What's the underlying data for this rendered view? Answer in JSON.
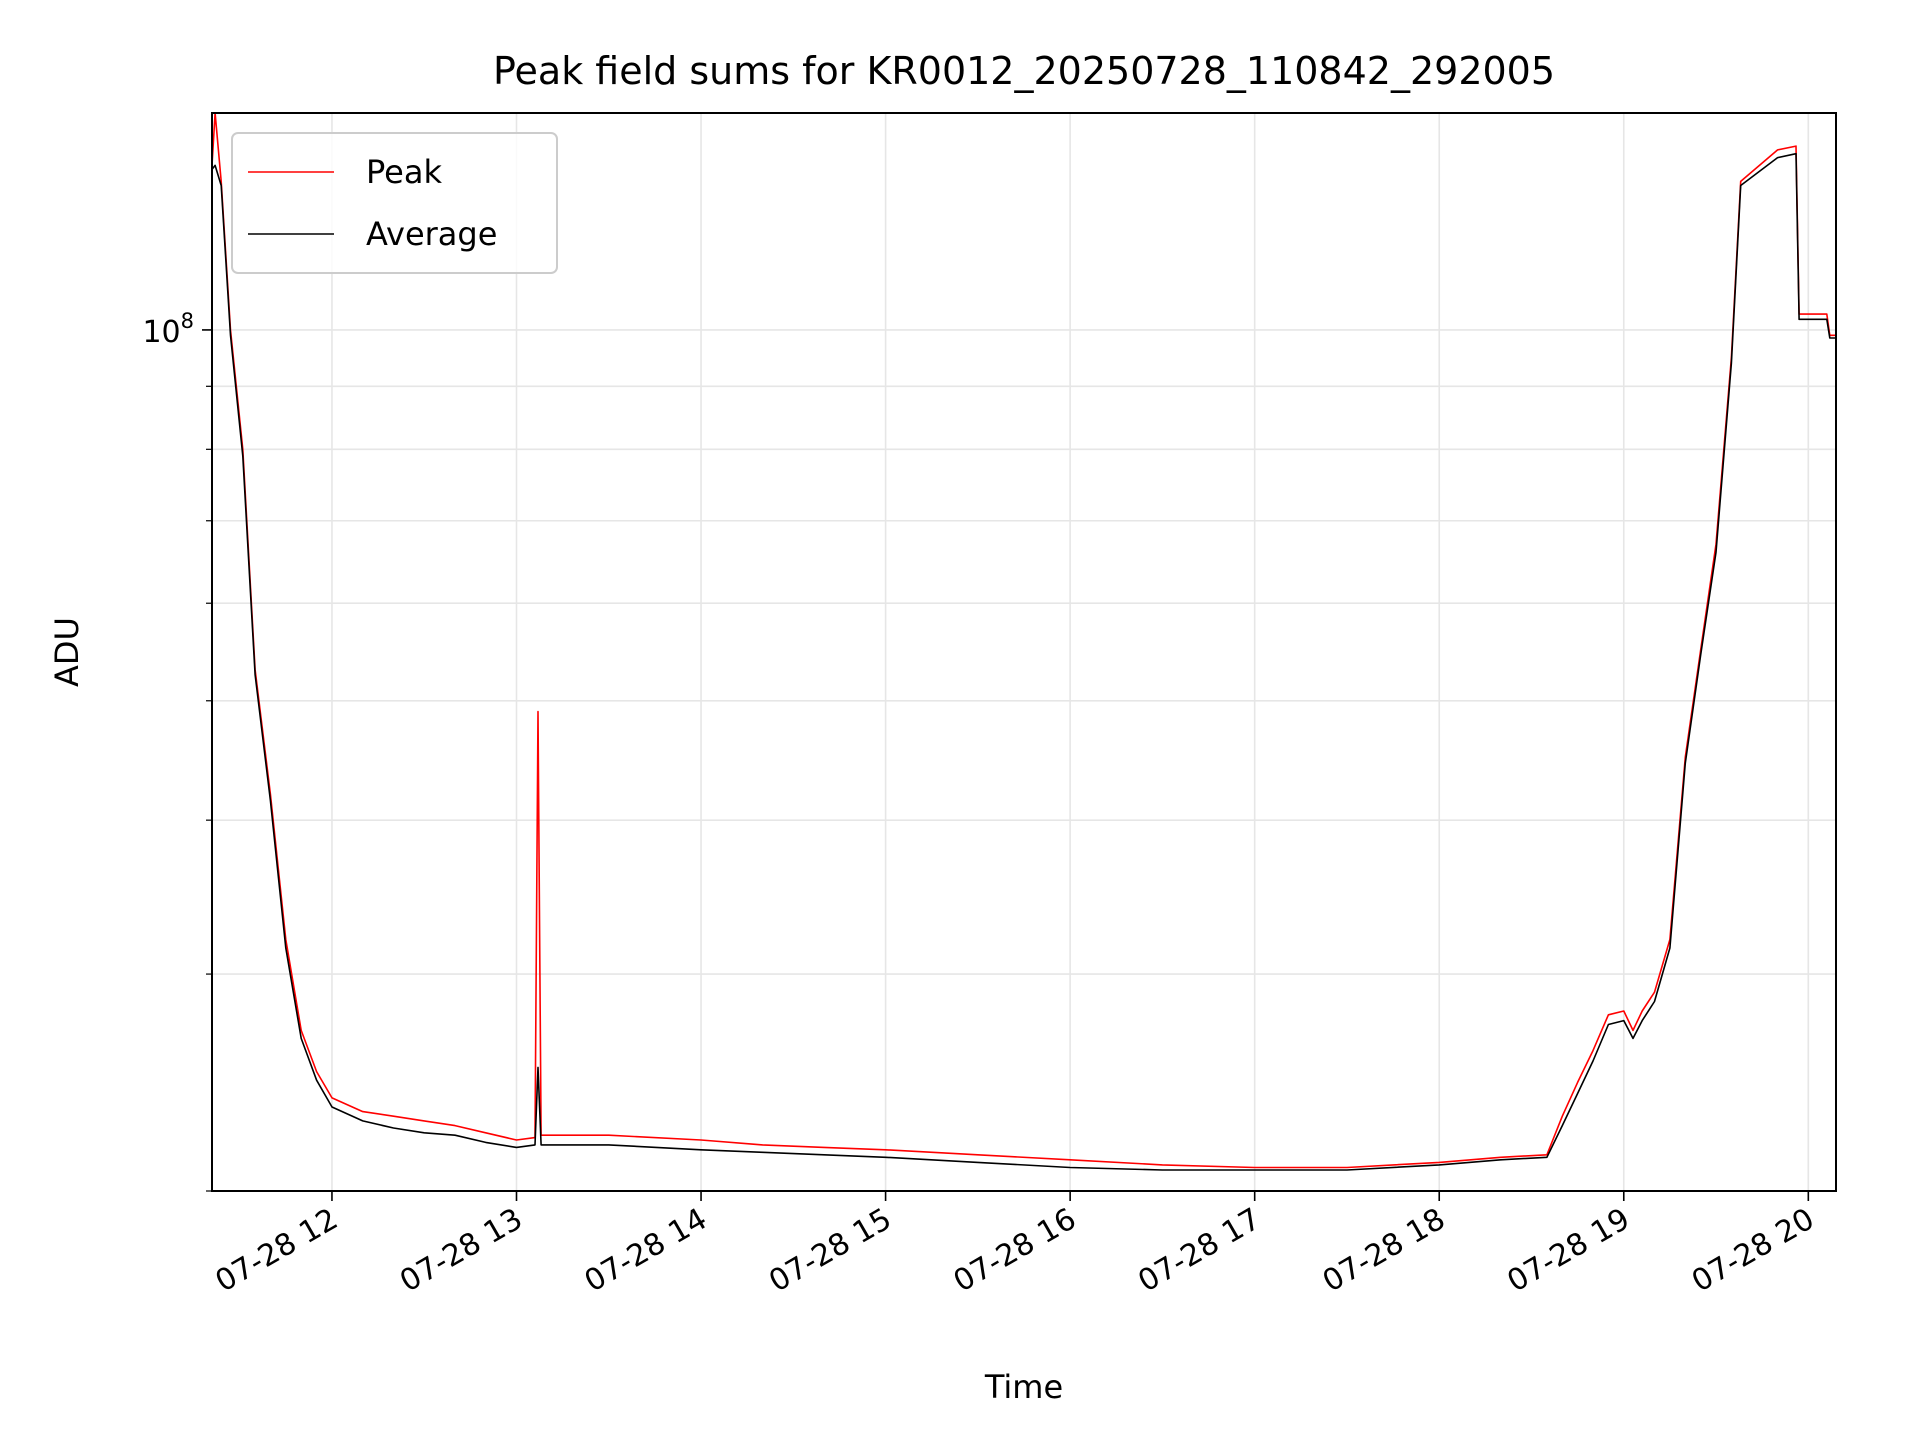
{
  "chart_data": {
    "type": "line",
    "title": "Peak field sums for KR0012_20250728_110842_292005",
    "xlabel": "Time",
    "ylabel": "ADU",
    "yscale": "log",
    "xlim": [
      "2025-07-28 11:21",
      "2025-07-28 20:09"
    ],
    "ylim": [
      20000000,
      150000000
    ],
    "grid": true,
    "legend_position": "top-left",
    "x_ticks": [
      {
        "value": "2025-07-28 12:00",
        "label": "07-28 12"
      },
      {
        "value": "2025-07-28 13:00",
        "label": "07-28 13"
      },
      {
        "value": "2025-07-28 14:00",
        "label": "07-28 14"
      },
      {
        "value": "2025-07-28 15:00",
        "label": "07-28 15"
      },
      {
        "value": "2025-07-28 16:00",
        "label": "07-28 16"
      },
      {
        "value": "2025-07-28 17:00",
        "label": "07-28 17"
      },
      {
        "value": "2025-07-28 18:00",
        "label": "07-28 18"
      },
      {
        "value": "2025-07-28 19:00",
        "label": "07-28 19"
      },
      {
        "value": "2025-07-28 20:00",
        "label": "07-28 20"
      }
    ],
    "y_major_ticks": [
      {
        "value": 100000000,
        "base": "10",
        "exponent": "8"
      }
    ],
    "y_minor_ticks": [
      20000000,
      30000000,
      40000000,
      50000000,
      60000000,
      70000000,
      80000000,
      90000000
    ],
    "series": [
      {
        "name": "Peak",
        "color": "#ff0000",
        "points": [
          [
            "2025-07-28 11:21",
            136000000
          ],
          [
            "2025-07-28 11:22",
            150000000
          ],
          [
            "2025-07-28 11:24",
            132000000
          ],
          [
            "2025-07-28 11:27",
            100000000
          ],
          [
            "2025-07-28 11:31",
            80000000
          ],
          [
            "2025-07-28 11:35",
            53000000
          ],
          [
            "2025-07-28 11:40",
            42000000
          ],
          [
            "2025-07-28 11:45",
            32000000
          ],
          [
            "2025-07-28 11:50",
            27000000
          ],
          [
            "2025-07-28 11:55",
            25000000
          ],
          [
            "2025-07-28 12:00",
            23800000
          ],
          [
            "2025-07-28 12:10",
            23200000
          ],
          [
            "2025-07-28 12:20",
            23000000
          ],
          [
            "2025-07-28 12:30",
            22800000
          ],
          [
            "2025-07-28 12:40",
            22600000
          ],
          [
            "2025-07-28 12:50",
            22300000
          ],
          [
            "2025-07-28 13:00",
            22000000
          ],
          [
            "2025-07-28 13:06",
            22100000
          ],
          [
            "2025-07-28 13:07",
            49000000
          ],
          [
            "2025-07-28 13:08",
            22200000
          ],
          [
            "2025-07-28 13:30",
            22200000
          ],
          [
            "2025-07-28 14:00",
            22000000
          ],
          [
            "2025-07-28 14:20",
            21800000
          ],
          [
            "2025-07-28 14:40",
            21700000
          ],
          [
            "2025-07-28 15:00",
            21600000
          ],
          [
            "2025-07-28 15:30",
            21400000
          ],
          [
            "2025-07-28 16:00",
            21200000
          ],
          [
            "2025-07-28 16:30",
            21000000
          ],
          [
            "2025-07-28 17:00",
            20900000
          ],
          [
            "2025-07-28 17:30",
            20900000
          ],
          [
            "2025-07-28 18:00",
            21100000
          ],
          [
            "2025-07-28 18:20",
            21300000
          ],
          [
            "2025-07-28 18:35",
            21400000
          ],
          [
            "2025-07-28 18:40",
            23000000
          ],
          [
            "2025-07-28 18:45",
            24500000
          ],
          [
            "2025-07-28 18:50",
            26000000
          ],
          [
            "2025-07-28 18:55",
            27800000
          ],
          [
            "2025-07-28 19:00",
            28000000
          ],
          [
            "2025-07-28 19:03",
            27000000
          ],
          [
            "2025-07-28 19:06",
            28000000
          ],
          [
            "2025-07-28 19:10",
            29000000
          ],
          [
            "2025-07-28 19:15",
            32000000
          ],
          [
            "2025-07-28 19:20",
            45000000
          ],
          [
            "2025-07-28 19:25",
            55000000
          ],
          [
            "2025-07-28 19:30",
            67000000
          ],
          [
            "2025-07-28 19:35",
            95000000
          ],
          [
            "2025-07-28 19:38",
            132000000
          ],
          [
            "2025-07-28 19:50",
            140000000
          ],
          [
            "2025-07-28 19:56",
            141000000
          ],
          [
            "2025-07-28 19:57",
            103000000
          ],
          [
            "2025-07-28 20:06",
            103000000
          ],
          [
            "2025-07-28 20:07",
            99000000
          ],
          [
            "2025-07-28 20:09",
            99000000
          ]
        ]
      },
      {
        "name": "Average",
        "color": "#000000",
        "points": [
          [
            "2025-07-28 11:21",
            135000000
          ],
          [
            "2025-07-28 11:22",
            136000000
          ],
          [
            "2025-07-28 11:24",
            131000000
          ],
          [
            "2025-07-28 11:27",
            99000000
          ],
          [
            "2025-07-28 11:31",
            79000000
          ],
          [
            "2025-07-28 11:35",
            52500000
          ],
          [
            "2025-07-28 11:40",
            41500000
          ],
          [
            "2025-07-28 11:45",
            31500000
          ],
          [
            "2025-07-28 11:50",
            26600000
          ],
          [
            "2025-07-28 11:55",
            24600000
          ],
          [
            "2025-07-28 12:00",
            23400000
          ],
          [
            "2025-07-28 12:10",
            22800000
          ],
          [
            "2025-07-28 12:20",
            22500000
          ],
          [
            "2025-07-28 12:30",
            22300000
          ],
          [
            "2025-07-28 12:40",
            22200000
          ],
          [
            "2025-07-28 12:50",
            21900000
          ],
          [
            "2025-07-28 13:00",
            21700000
          ],
          [
            "2025-07-28 13:06",
            21800000
          ],
          [
            "2025-07-28 13:07",
            25200000
          ],
          [
            "2025-07-28 13:08",
            21800000
          ],
          [
            "2025-07-28 13:30",
            21800000
          ],
          [
            "2025-07-28 14:00",
            21600000
          ],
          [
            "2025-07-28 14:20",
            21500000
          ],
          [
            "2025-07-28 14:40",
            21400000
          ],
          [
            "2025-07-28 15:00",
            21300000
          ],
          [
            "2025-07-28 15:30",
            21100000
          ],
          [
            "2025-07-28 16:00",
            20900000
          ],
          [
            "2025-07-28 16:30",
            20800000
          ],
          [
            "2025-07-28 17:00",
            20800000
          ],
          [
            "2025-07-28 17:30",
            20800000
          ],
          [
            "2025-07-28 18:00",
            21000000
          ],
          [
            "2025-07-28 18:20",
            21200000
          ],
          [
            "2025-07-28 18:35",
            21300000
          ],
          [
            "2025-07-28 18:40",
            22600000
          ],
          [
            "2025-07-28 18:45",
            24000000
          ],
          [
            "2025-07-28 18:50",
            25500000
          ],
          [
            "2025-07-28 18:55",
            27300000
          ],
          [
            "2025-07-28 19:00",
            27500000
          ],
          [
            "2025-07-28 19:03",
            26600000
          ],
          [
            "2025-07-28 19:06",
            27500000
          ],
          [
            "2025-07-28 19:10",
            28500000
          ],
          [
            "2025-07-28 19:15",
            31500000
          ],
          [
            "2025-07-28 19:20",
            44500000
          ],
          [
            "2025-07-28 19:25",
            54500000
          ],
          [
            "2025-07-28 19:30",
            66000000
          ],
          [
            "2025-07-28 19:35",
            94000000
          ],
          [
            "2025-07-28 19:38",
            131000000
          ],
          [
            "2025-07-28 19:50",
            138000000
          ],
          [
            "2025-07-28 19:56",
            139000000
          ],
          [
            "2025-07-28 19:57",
            102000000
          ],
          [
            "2025-07-28 20:06",
            102000000
          ],
          [
            "2025-07-28 20:07",
            98500000
          ],
          [
            "2025-07-28 20:09",
            98500000
          ]
        ]
      }
    ]
  }
}
